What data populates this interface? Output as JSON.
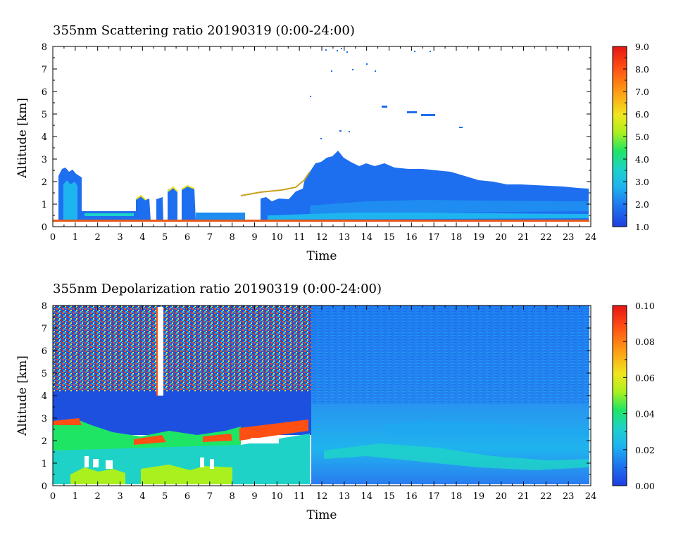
{
  "chart_data": [
    {
      "type": "heatmap",
      "title": "355nm Scattering ratio  20190319 (0:00-24:00)",
      "xlabel": "Time",
      "ylabel": "Altitude [km]",
      "xlim": [
        0,
        24
      ],
      "ylim": [
        0,
        8
      ],
      "x_ticks": [
        "0",
        "1",
        "2",
        "3",
        "4",
        "5",
        "6",
        "7",
        "8",
        "9",
        "10",
        "11",
        "12",
        "13",
        "14",
        "15",
        "16",
        "17",
        "18",
        "19",
        "20",
        "21",
        "22",
        "23",
        "24"
      ],
      "y_ticks": [
        "0",
        "1",
        "2",
        "3",
        "4",
        "5",
        "6",
        "7",
        "8"
      ],
      "colorbar": {
        "range": [
          1.0,
          9.0
        ],
        "ticks": [
          "9.0",
          "8.0",
          "7.0",
          "6.0",
          "5.0",
          "4.0",
          "3.0",
          "2.0",
          "1.0"
        ],
        "colors": [
          "#1e3fe0",
          "#1e78f0",
          "#1eb4f0",
          "#1ed2c8",
          "#1ee664",
          "#aaf01e",
          "#f0e61e",
          "#ff9b14",
          "#ff5014",
          "#e61414"
        ]
      },
      "features": [
        {
          "x": [
            0.3,
            1.3
          ],
          "y": [
            0.2,
            2.6
          ],
          "level": 2.0
        },
        {
          "x": [
            3.8,
            6.6
          ],
          "y": [
            0.2,
            1.8
          ],
          "level": 2.0
        },
        {
          "x": [
            9.2,
            11.5
          ],
          "y": [
            0.2,
            1.8
          ],
          "level": 2.0
        },
        {
          "x": [
            11.5,
            24
          ],
          "y": [
            0.2,
            2.7
          ],
          "level": 1.6
        }
      ],
      "grid": false
    },
    {
      "type": "heatmap",
      "title": "355nm Depolarization ratio  20190319 (0:00-24:00)",
      "xlabel": "Time",
      "ylabel": "Altitude [km]",
      "xlim": [
        0,
        24
      ],
      "ylim": [
        0,
        8
      ],
      "x_ticks": [
        "0",
        "1",
        "2",
        "3",
        "4",
        "5",
        "6",
        "7",
        "8",
        "9",
        "10",
        "11",
        "12",
        "13",
        "14",
        "15",
        "16",
        "17",
        "18",
        "19",
        "20",
        "21",
        "22",
        "23",
        "24"
      ],
      "y_ticks": [
        "0",
        "1",
        "2",
        "3",
        "4",
        "5",
        "6",
        "7",
        "8"
      ],
      "colorbar": {
        "range": [
          0.0,
          0.1
        ],
        "ticks": [
          "0.10",
          "0.08",
          "0.06",
          "0.04",
          "0.02",
          "0.00"
        ],
        "colors": [
          "#1e3fe0",
          "#1e78f0",
          "#1eb4f0",
          "#1ed2c8",
          "#1ee664",
          "#aaf01e",
          "#f0e61e",
          "#ff9b14",
          "#ff5014",
          "#e61414"
        ]
      },
      "features": [
        {
          "x": [
            0,
            11.6
          ],
          "y": [
            3.5,
            8
          ],
          "level": 0.05
        },
        {
          "x": [
            0,
            11.6
          ],
          "y": [
            2.0,
            3.5
          ],
          "level": 0.01
        },
        {
          "x": [
            0,
            11.6
          ],
          "y": [
            0,
            2.0
          ],
          "level": 0.035
        },
        {
          "x": [
            11.6,
            24
          ],
          "y": [
            0,
            8
          ],
          "level": 0.012
        }
      ],
      "grid": false
    }
  ]
}
